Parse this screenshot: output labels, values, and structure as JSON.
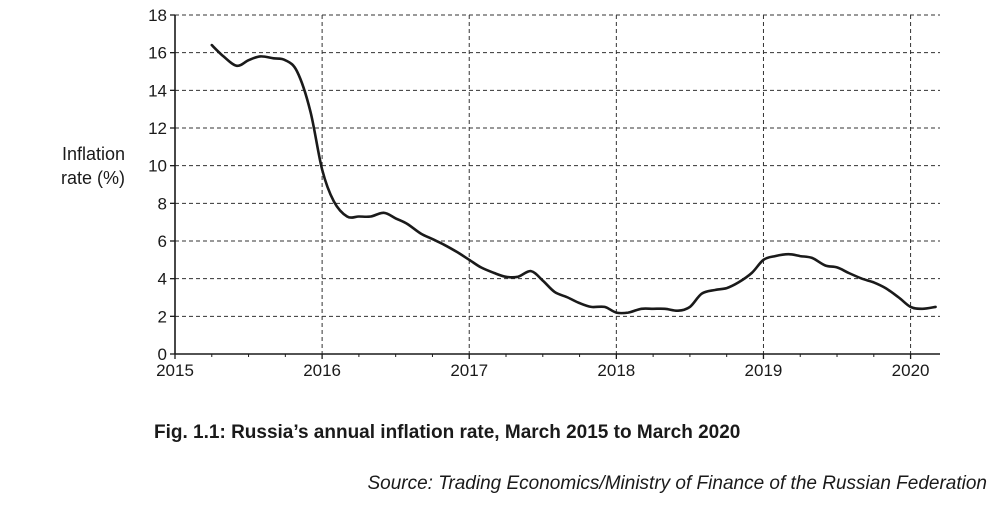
{
  "caption": "Fig. 1.1: Russia’s annual inflation rate, March 2015 to March 2020",
  "source": "Source: Trading Economics/Ministry of Finance of the Russian Federation",
  "chart_data": {
    "type": "line",
    "title": "",
    "xlabel": "",
    "ylabel_lines": [
      "Inflation",
      "rate (%)"
    ],
    "xlim": [
      2015,
      2020.2
    ],
    "ylim": [
      0,
      18
    ],
    "x_ticks": [
      2015,
      2016,
      2017,
      2018,
      2019,
      2020
    ],
    "y_ticks": [
      0,
      2,
      4,
      6,
      8,
      10,
      12,
      14,
      16,
      18
    ],
    "grid": true,
    "grid_style": "dashed",
    "line_color": "#1a1a1a",
    "series": [
      {
        "x": [
          2015.25,
          2015.33,
          2015.42,
          2015.5,
          2015.58,
          2015.67,
          2015.75,
          2015.83,
          2015.92,
          2016.0,
          2016.08,
          2016.17,
          2016.25,
          2016.33,
          2016.42,
          2016.5,
          2016.58,
          2016.67,
          2016.75,
          2016.83,
          2016.92,
          2017.0,
          2017.08,
          2017.17,
          2017.25,
          2017.33,
          2017.42,
          2017.5,
          2017.58,
          2017.67,
          2017.75,
          2017.83,
          2017.92,
          2018.0,
          2018.08,
          2018.17,
          2018.25,
          2018.33,
          2018.42,
          2018.5,
          2018.58,
          2018.67,
          2018.75,
          2018.83,
          2018.92,
          2019.0,
          2019.08,
          2019.17,
          2019.25,
          2019.33,
          2019.42,
          2019.5,
          2019.58,
          2019.67,
          2019.75,
          2019.83,
          2019.92,
          2020.0,
          2020.08,
          2020.17
        ],
        "y": [
          16.4,
          15.8,
          15.3,
          15.6,
          15.8,
          15.7,
          15.6,
          15.0,
          12.9,
          9.8,
          8.1,
          7.3,
          7.3,
          7.3,
          7.5,
          7.2,
          6.9,
          6.4,
          6.1,
          5.8,
          5.4,
          5.0,
          4.6,
          4.3,
          4.1,
          4.1,
          4.4,
          3.9,
          3.3,
          3.0,
          2.7,
          2.5,
          2.5,
          2.2,
          2.2,
          2.4,
          2.4,
          2.4,
          2.3,
          2.5,
          3.2,
          3.4,
          3.5,
          3.8,
          4.3,
          5.0,
          5.2,
          5.3,
          5.2,
          5.1,
          4.7,
          4.6,
          4.3,
          4.0,
          3.8,
          3.5,
          3.0,
          2.5,
          2.4,
          2.5
        ]
      }
    ]
  }
}
